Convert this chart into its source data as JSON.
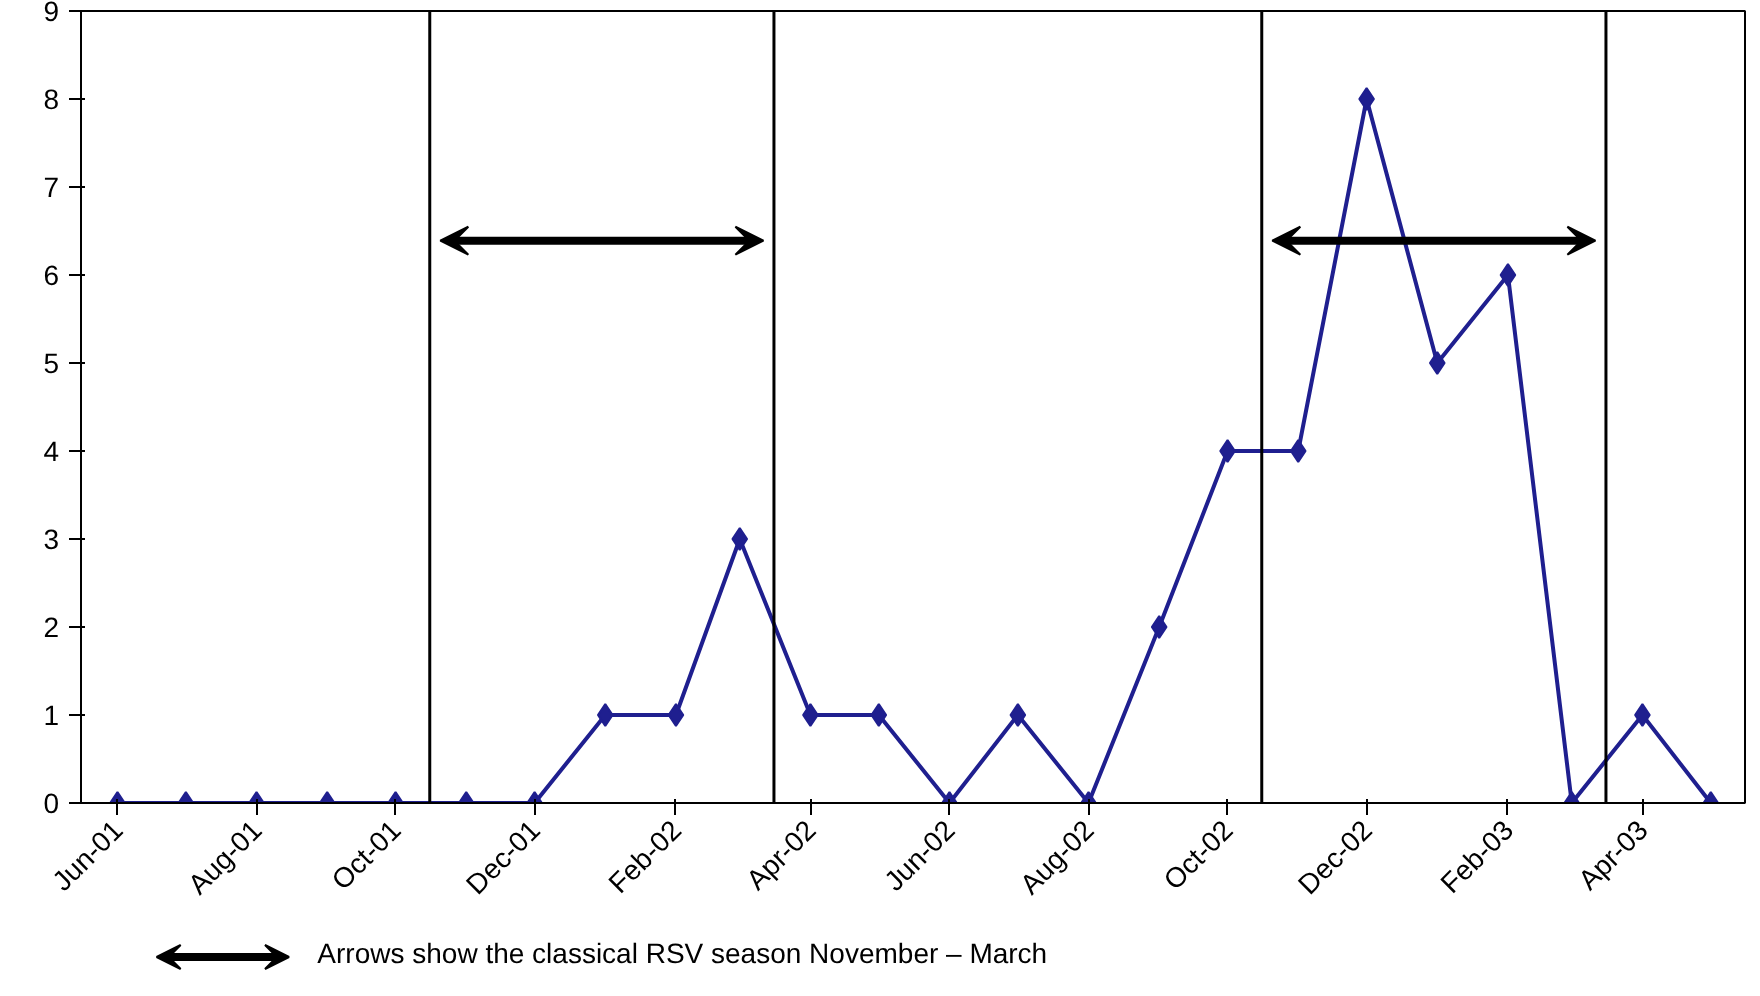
{
  "chart_data": {
    "type": "line",
    "x": [
      "2001-06",
      "2001-07",
      "2001-08",
      "2001-09",
      "2001-10",
      "2001-11",
      "2001-12",
      "2002-01",
      "2002-02",
      "2002-03",
      "2002-04",
      "2002-05",
      "2002-06",
      "2002-07",
      "2002-08",
      "2002-09",
      "2002-10",
      "2002-11",
      "2002-12",
      "2003-01",
      "2003-02",
      "2003-03",
      "2003-04",
      "2003-05"
    ],
    "series": [
      {
        "color": "#1f1f8f",
        "values": [
          0,
          0,
          0,
          0,
          0,
          0,
          0,
          1,
          1,
          3,
          1,
          1,
          0,
          1,
          0,
          2,
          4,
          4,
          8,
          5,
          6,
          0,
          1,
          0
        ]
      }
    ],
    "marker": "diamond",
    "xlim": [
      "2001-05-16",
      "2003-05-16"
    ],
    "xticks": [
      {
        "value": "2001-06",
        "label": "Jun-01"
      },
      {
        "value": "2001-08",
        "label": "Aug-01"
      },
      {
        "value": "2001-10",
        "label": "Oct-01"
      },
      {
        "value": "2001-12",
        "label": "Dec-01"
      },
      {
        "value": "2002-02",
        "label": "Feb-02"
      },
      {
        "value": "2002-04",
        "label": "Apr-02"
      },
      {
        "value": "2002-06",
        "label": "Jun-02"
      },
      {
        "value": "2002-08",
        "label": "Aug-02"
      },
      {
        "value": "2002-10",
        "label": "Oct-02"
      },
      {
        "value": "2002-12",
        "label": "Dec-02"
      },
      {
        "value": "2003-02",
        "label": "Feb-03"
      },
      {
        "value": "2003-04",
        "label": "Apr-03"
      }
    ],
    "ylim": [
      0,
      9
    ],
    "yticks": [
      0,
      1,
      2,
      3,
      4,
      5,
      6,
      7,
      8,
      9
    ],
    "ref_lines": [
      {
        "axis": "x",
        "value": "2001-10-16",
        "color": "#000000"
      },
      {
        "axis": "x",
        "value": "2002-03-16",
        "color": "#000000"
      },
      {
        "axis": "x",
        "value": "2002-10-16",
        "color": "#000000"
      },
      {
        "axis": "x",
        "value": "2003-03-16",
        "color": "#000000"
      }
    ],
    "annotations": [
      "Arrows show the classical RSV season November – March"
    ]
  }
}
